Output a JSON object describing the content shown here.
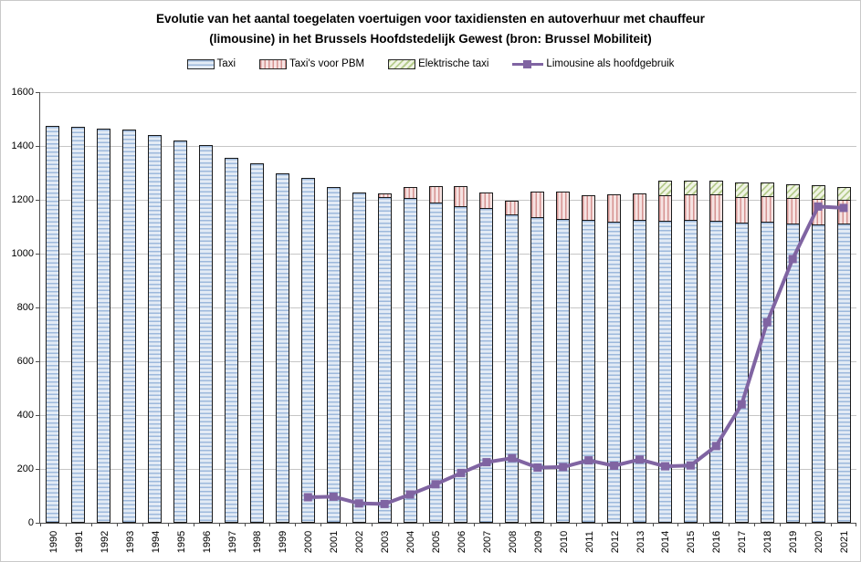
{
  "title": {
    "line1": "Evolutie van het aantal toegelaten voertuigen voor taxidiensten en autoverhuur met chauffeur",
    "line2": "(limousine) in het Brussels Hoofdstedelijk Gewest (bron: Brussel Mobiliteit)"
  },
  "colors": {
    "taxi_fill": "#e3ebf5",
    "taxi_stripe": "#9cb8dc",
    "pbm_fill": "#f6e3e2",
    "pbm_stripe": "#d59391",
    "elektrisch_fill": "#f0f4e5",
    "elektrisch_stripe": "#b6cc8e",
    "limousine_line": "#8064a2",
    "bar_border": "#1a1a1a",
    "gridline": "#c6c6c6",
    "axis": "#4d4d4d"
  },
  "chart_data": {
    "type": "bar",
    "subtype": "stacked-bars-with-line-overlay",
    "title": "Evolutie van het aantal toegelaten voertuigen voor taxidiensten en autoverhuur met chauffeur (limousine) in het Brussels Hoofdstedelijk Gewest (bron: Brussel Mobiliteit)",
    "categories": [
      "1990",
      "1991",
      "1992",
      "1993",
      "1994",
      "1995",
      "1996",
      "1997",
      "1998",
      "1999",
      "2000",
      "2001",
      "2002",
      "2003",
      "2004",
      "2005",
      "2006",
      "2007",
      "2008",
      "2009",
      "2010",
      "2011",
      "2012",
      "2013",
      "2014",
      "2015",
      "2016",
      "2017",
      "2018",
      "2019",
      "2020",
      "2021"
    ],
    "series": [
      {
        "name": "Taxi",
        "type": "bar",
        "values": [
          1475,
          1470,
          1465,
          1460,
          1440,
          1420,
          1402,
          1355,
          1335,
          1300,
          1280,
          1248,
          1227,
          1210,
          1208,
          1190,
          1175,
          1170,
          1145,
          1134,
          1130,
          1124,
          1120,
          1124,
          1122,
          1125,
          1122,
          1114,
          1118,
          1112,
          1109,
          1111
        ]
      },
      {
        "name": "Taxi's voor PBM",
        "type": "bar",
        "values": [
          0,
          0,
          0,
          0,
          0,
          0,
          0,
          0,
          0,
          0,
          0,
          0,
          0,
          14,
          40,
          62,
          75,
          56,
          52,
          97,
          100,
          92,
          102,
          100,
          96,
          96,
          99,
          96,
          95,
          95,
          93,
          88
        ]
      },
      {
        "name": "Elektrische taxi",
        "type": "bar",
        "values": [
          0,
          0,
          0,
          0,
          0,
          0,
          0,
          0,
          0,
          0,
          0,
          0,
          0,
          0,
          0,
          0,
          0,
          0,
          0,
          0,
          0,
          0,
          0,
          0,
          52,
          51,
          51,
          55,
          52,
          51,
          54,
          49
        ]
      },
      {
        "name": "Limousine als hoofdgebruik",
        "type": "line",
        "values": [
          null,
          null,
          null,
          null,
          null,
          null,
          null,
          null,
          null,
          null,
          95,
          97,
          72,
          70,
          105,
          143,
          185,
          225,
          240,
          205,
          207,
          232,
          212,
          235,
          210,
          213,
          285,
          440,
          745,
          980,
          1175,
          1170
        ]
      }
    ],
    "ylim": [
      0,
      1600
    ],
    "ytick_interval": 200,
    "y_ticks": [
      0,
      200,
      400,
      600,
      800,
      1000,
      1200,
      1400,
      1600
    ],
    "grid": true,
    "legend_position": "top",
    "x_label_rotation": -90
  }
}
